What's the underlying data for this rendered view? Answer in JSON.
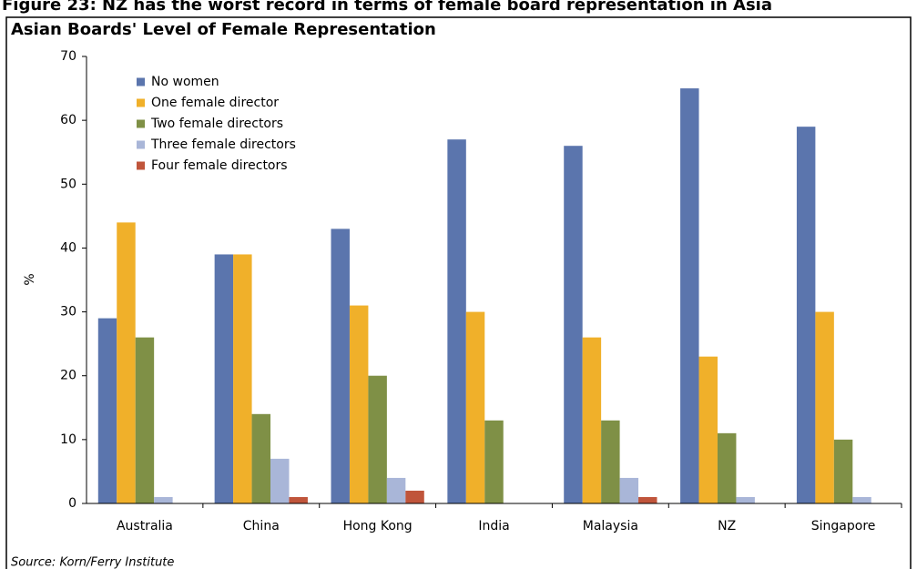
{
  "header": "Figure 23: NZ has the worst record in terms of female board representation in Asia",
  "chart_data": {
    "type": "bar",
    "title": "Asian Boards' Level of Female Representation",
    "y_label": "%",
    "categories": [
      "Australia",
      "China",
      "Hong Kong",
      "India",
      "Malaysia",
      "NZ",
      "Singapore"
    ],
    "series": [
      {
        "name": "No women",
        "color": "#5b75ad",
        "values": [
          29,
          39,
          43,
          57,
          56,
          65,
          59
        ]
      },
      {
        "name": "One female director",
        "color": "#f0b02a",
        "values": [
          44,
          39,
          31,
          30,
          26,
          23,
          30
        ]
      },
      {
        "name": "Two female directors",
        "color": "#7f9046",
        "values": [
          26,
          14,
          20,
          13,
          13,
          11,
          10
        ]
      },
      {
        "name": "Three female directors",
        "color": "#a9b6d8",
        "values": [
          1,
          7,
          4,
          0,
          4,
          1,
          1
        ]
      },
      {
        "name": "Four female directors",
        "color": "#c0553b",
        "values": [
          0,
          1,
          2,
          0,
          1,
          0,
          0
        ]
      }
    ],
    "ylim": [
      0,
      70
    ],
    "yticks": [
      0,
      10,
      20,
      30,
      40,
      50,
      60,
      70
    ],
    "grid": false,
    "legend": "top-left"
  },
  "source": "Source: Korn/Ferry Institute"
}
